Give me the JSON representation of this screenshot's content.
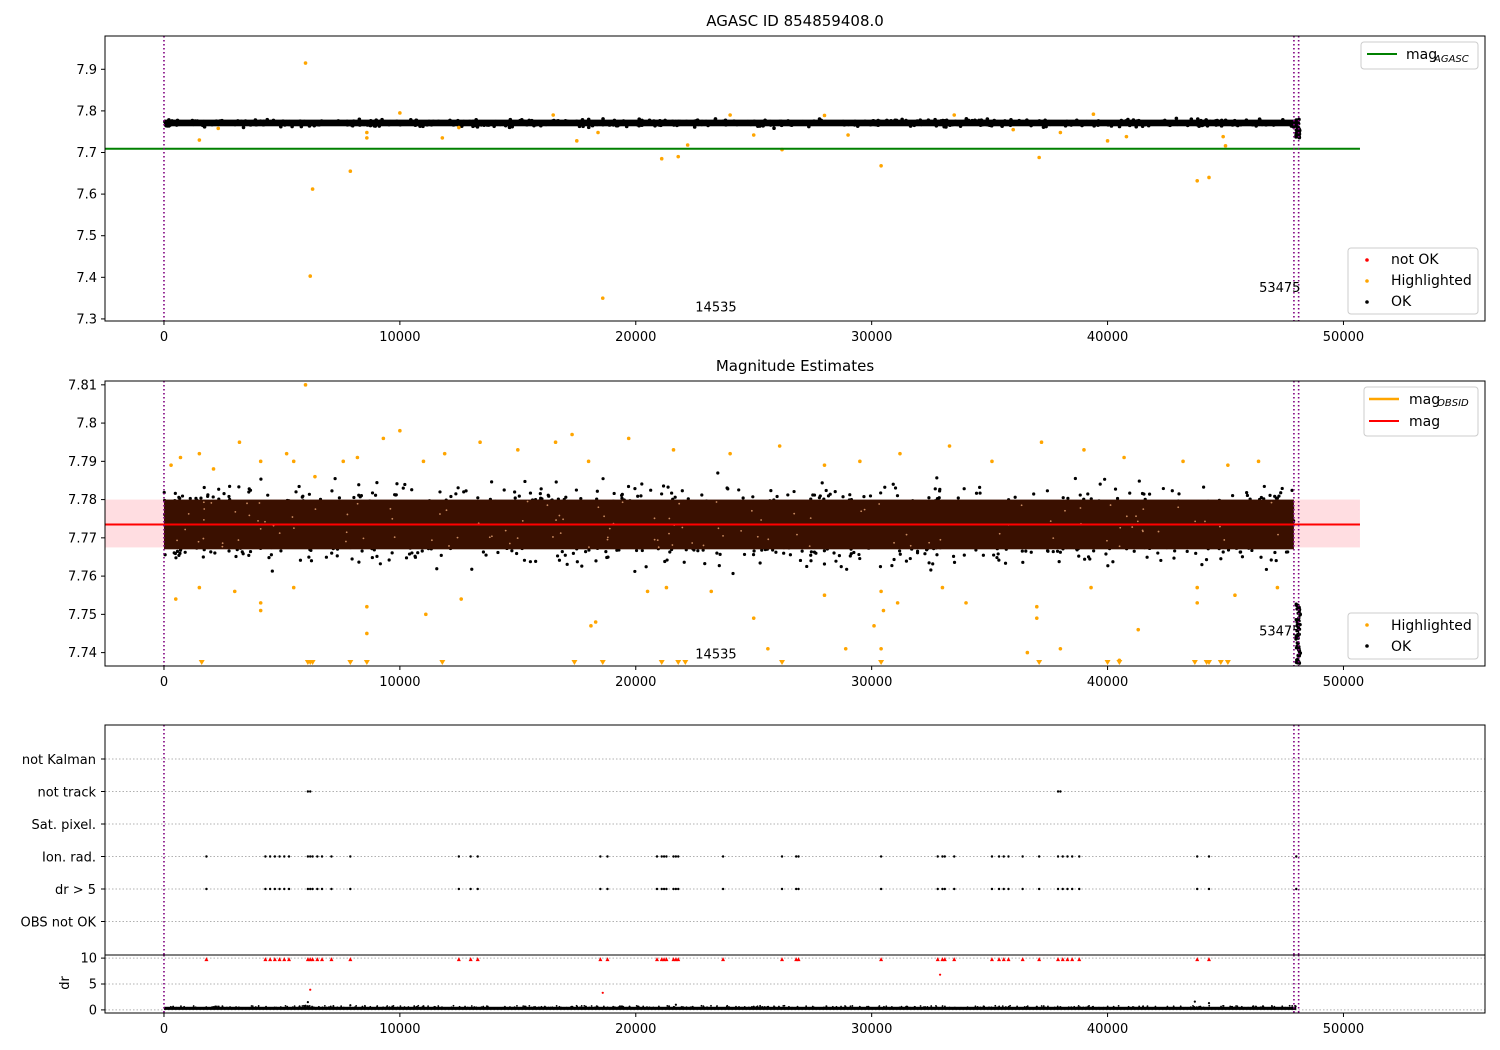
{
  "figure": {
    "title_top": "AGASC ID 854859408.0",
    "title_mid": "Magnitude Estimates",
    "obs_labels": [
      "14535",
      "53475"
    ]
  },
  "colors": {
    "ok": "#000000",
    "highlighted": "#ffa500",
    "not_ok": "#ff0000",
    "agasc_line": "#008000",
    "mag_line": "#ff0000",
    "obsid_line": "#ffa500",
    "band_fill": "#ffdde1",
    "band_dark": "#3a1000",
    "obs_marker": "#800080"
  },
  "chart_data": [
    {
      "type": "scatter",
      "title": "AGASC ID 854859408.0",
      "xlim": [
        -2500,
        56000
      ],
      "ylim": [
        7.295,
        7.98
      ],
      "xticks": [
        0,
        10000,
        20000,
        30000,
        40000,
        50000
      ],
      "yticks": [
        7.3,
        7.4,
        7.5,
        7.6,
        7.7,
        7.8,
        7.9
      ],
      "lines": [
        {
          "name": "mag_AGASC",
          "y": 7.709,
          "x_end": 50700
        }
      ],
      "legend_lines": [
        {
          "label": "mag",
          "sub": "AGASC"
        }
      ],
      "legend_points": [
        "not OK",
        "Highlighted",
        "OK"
      ],
      "legend_lines_position": "top-right",
      "legend_points_position": "bottom-right",
      "series": [
        {
          "name": "OK",
          "band_center": 7.771,
          "band_half_height": 0.008,
          "x_range": [
            0,
            47900
          ]
        },
        {
          "name": "Highlighted",
          "points": [
            [
              6000,
              7.915
            ],
            [
              6200,
              7.403
            ],
            [
              6300,
              7.612
            ],
            [
              7900,
              7.655
            ],
            [
              8600,
              7.735
            ],
            [
              8600,
              7.748
            ],
            [
              11800,
              7.735
            ],
            [
              17500,
              7.728
            ],
            [
              18600,
              7.35
            ],
            [
              18400,
              7.748
            ],
            [
              21100,
              7.685
            ],
            [
              21800,
              7.69
            ],
            [
              22200,
              7.718
            ],
            [
              25000,
              7.742
            ],
            [
              26200,
              7.707
            ],
            [
              29000,
              7.742
            ],
            [
              30400,
              7.668
            ],
            [
              37100,
              7.688
            ],
            [
              38000,
              7.748
            ],
            [
              40000,
              7.728
            ],
            [
              40800,
              7.738
            ],
            [
              43800,
              7.632
            ],
            [
              44300,
              7.64
            ],
            [
              45000,
              7.716
            ],
            [
              44900,
              7.738
            ],
            [
              16500,
              7.79
            ],
            [
              10000,
              7.795
            ],
            [
              24000,
              7.79
            ],
            [
              39400,
              7.792
            ],
            [
              28000,
              7.789
            ],
            [
              33500,
              7.79
            ],
            [
              1500,
              7.73
            ],
            [
              12500,
              7.76
            ],
            [
              36000,
              7.755
            ],
            [
              2300,
              7.758
            ]
          ]
        }
      ],
      "vlines": [
        0,
        47900,
        48100
      ],
      "obs_labels": [
        {
          "text": "14535",
          "x": 23400,
          "y": 7.318
        },
        {
          "text": "53475",
          "x": 47300,
          "y": 7.365
        }
      ]
    },
    {
      "type": "scatter",
      "title": "Magnitude Estimates",
      "xlim": [
        -2500,
        56000
      ],
      "ylim": [
        7.7365,
        7.811
      ],
      "xticks": [
        0,
        10000,
        20000,
        30000,
        40000,
        50000
      ],
      "yticks": [
        7.74,
        7.75,
        7.76,
        7.77,
        7.78,
        7.79,
        7.8,
        7.81
      ],
      "lines": [
        {
          "name": "mag",
          "y": 7.7735,
          "x_end": 50700
        }
      ],
      "band": [
        7.7675,
        7.78
      ],
      "legend_lines": [
        {
          "label": "mag",
          "sub": "OBSID"
        },
        {
          "label": "mag",
          "sub": ""
        }
      ],
      "legend_points": [
        "Highlighted",
        "OK"
      ],
      "legend_lines_position": "top-right",
      "legend_points_position": "bottom-right",
      "series": [
        {
          "name": "OK",
          "band_center": 7.7735,
          "dense_half_height": 0.0065,
          "scatter_half_height": 0.016,
          "x_range": [
            0,
            47900
          ]
        },
        {
          "name": "Highlighted",
          "points": [
            [
              6000,
              7.81
            ],
            [
              300,
              7.789
            ],
            [
              700,
              7.791
            ],
            [
              1500,
              7.792
            ],
            [
              2100,
              7.788
            ],
            [
              3200,
              7.795
            ],
            [
              4100,
              7.79
            ],
            [
              5200,
              7.792
            ],
            [
              5500,
              7.79
            ],
            [
              6400,
              7.786
            ],
            [
              7600,
              7.79
            ],
            [
              8200,
              7.791
            ],
            [
              9300,
              7.796
            ],
            [
              10000,
              7.798
            ],
            [
              11000,
              7.79
            ],
            [
              11900,
              7.792
            ],
            [
              13400,
              7.795
            ],
            [
              15000,
              7.793
            ],
            [
              16600,
              7.795
            ],
            [
              17300,
              7.797
            ],
            [
              18000,
              7.79
            ],
            [
              19700,
              7.796
            ],
            [
              21600,
              7.793
            ],
            [
              24000,
              7.792
            ],
            [
              26100,
              7.794
            ],
            [
              28000,
              7.789
            ],
            [
              29500,
              7.79
            ],
            [
              31200,
              7.792
            ],
            [
              33300,
              7.794
            ],
            [
              35100,
              7.79
            ],
            [
              37200,
              7.795
            ],
            [
              39000,
              7.793
            ],
            [
              40700,
              7.791
            ],
            [
              43200,
              7.79
            ],
            [
              45100,
              7.789
            ],
            [
              46400,
              7.79
            ],
            [
              500,
              7.754
            ],
            [
              1500,
              7.757
            ],
            [
              3000,
              7.756
            ],
            [
              4100,
              7.753
            ],
            [
              4100,
              7.751
            ],
            [
              5500,
              7.757
            ],
            [
              8600,
              7.752
            ],
            [
              8600,
              7.745
            ],
            [
              11100,
              7.75
            ],
            [
              12600,
              7.754
            ],
            [
              18100,
              7.747
            ],
            [
              18300,
              7.748
            ],
            [
              20500,
              7.756
            ],
            [
              21300,
              7.757
            ],
            [
              23200,
              7.756
            ],
            [
              25000,
              7.749
            ],
            [
              25600,
              7.741
            ],
            [
              28000,
              7.755
            ],
            [
              28900,
              7.741
            ],
            [
              30100,
              7.747
            ],
            [
              30400,
              7.756
            ],
            [
              30500,
              7.751
            ],
            [
              30400,
              7.741
            ],
            [
              31100,
              7.753
            ],
            [
              33000,
              7.757
            ],
            [
              34000,
              7.753
            ],
            [
              37000,
              7.749
            ],
            [
              37000,
              7.752
            ],
            [
              36600,
              7.74
            ],
            [
              38000,
              7.741
            ],
            [
              39300,
              7.757
            ],
            [
              40500,
              7.738
            ],
            [
              41300,
              7.746
            ],
            [
              43800,
              7.757
            ],
            [
              43800,
              7.753
            ],
            [
              45400,
              7.755
            ],
            [
              47200,
              7.757
            ]
          ]
        },
        {
          "name": "Highlighted-clipped",
          "x": [
            1600,
            6100,
            6200,
            6300,
            7900,
            8600,
            11800,
            17400,
            18600,
            21100,
            21800,
            22100,
            26200,
            30400,
            37100,
            40000,
            40500,
            43700,
            44200,
            44300,
            44800,
            45100
          ]
        }
      ],
      "vlines": [
        0,
        47900,
        48100
      ],
      "obs_labels": [
        {
          "text": "14535",
          "x": 23400,
          "y": 7.7385
        },
        {
          "text": "53475",
          "x": 47300,
          "y": 7.7445
        }
      ]
    },
    {
      "type": "scatter",
      "title": "",
      "xlim": [
        -2500,
        56000
      ],
      "categories": [
        "not Kalman",
        "not track",
        "Sat. pixel.",
        "Ion. rad.",
        "dr > 5",
        "OBS not OK"
      ],
      "flags": {
        "not track": [
          6100,
          6200,
          37900,
          38000
        ],
        "Ion. rad.": [
          1800,
          4300,
          4500,
          4700,
          4900,
          5100,
          5300,
          6100,
          6200,
          6300,
          6500,
          6700,
          7100,
          7900,
          12500,
          13000,
          13300,
          18500,
          18800,
          20900,
          21100,
          21200,
          21300,
          21600,
          21700,
          21800,
          23700,
          26200,
          26800,
          26900,
          30400,
          32800,
          33000,
          33100,
          33500,
          35100,
          35400,
          35600,
          35800,
          36400,
          37100,
          37900,
          38100,
          38300,
          38500,
          38800,
          43800,
          44300,
          48000
        ],
        "dr > 5": [
          1800,
          4300,
          4500,
          4700,
          4900,
          5100,
          5300,
          6100,
          6200,
          6300,
          6500,
          6700,
          7100,
          7900,
          12500,
          13000,
          13300,
          18500,
          18800,
          20900,
          21100,
          21200,
          21300,
          21600,
          21700,
          21800,
          23700,
          26200,
          26800,
          26900,
          30400,
          32800,
          33000,
          33100,
          33500,
          35100,
          35400,
          35600,
          35800,
          36400,
          37100,
          37900,
          38100,
          38300,
          38500,
          38800,
          43800,
          44300,
          48000
        ]
      },
      "vlines": [
        0,
        47900,
        48100
      ]
    },
    {
      "type": "scatter",
      "ylabel": "dr",
      "xlim": [
        -2500,
        56000
      ],
      "ylim": [
        -0.6,
        10.6
      ],
      "yticks": [
        0,
        5,
        10
      ],
      "xticks": [
        0,
        10000,
        20000,
        30000,
        40000,
        50000
      ],
      "series": [
        {
          "name": "OK",
          "baseline": 0.3,
          "x_range": [
            0,
            48000
          ],
          "extra": [
            [
              6100,
              1.5
            ],
            [
              6000,
              0.8
            ],
            [
              7900,
              0.9
            ],
            [
              11000,
              0.7
            ],
            [
              21700,
              1.0
            ],
            [
              43700,
              1.6
            ],
            [
              44300,
              1.3
            ],
            [
              37000,
              0.6
            ],
            [
              25000,
              0.6
            ]
          ]
        },
        {
          "name": "not OK",
          "clipped_x": [
            1800,
            4300,
            4500,
            4700,
            4900,
            5100,
            5300,
            6100,
            6200,
            6300,
            6500,
            6700,
            7100,
            7900,
            12500,
            13000,
            13300,
            18500,
            18800,
            20900,
            21100,
            21200,
            21300,
            21600,
            21700,
            21800,
            23700,
            26200,
            26800,
            26900,
            30400,
            32800,
            33000,
            33100,
            33500,
            35100,
            35400,
            35600,
            35800,
            36400,
            37100,
            37900,
            38100,
            38300,
            38500,
            38800,
            43800,
            44300
          ],
          "points": [
            [
              6200,
              3.9
            ],
            [
              18600,
              3.3
            ],
            [
              32900,
              6.8
            ]
          ]
        }
      ],
      "vlines": [
        0,
        47900,
        48100
      ]
    }
  ]
}
